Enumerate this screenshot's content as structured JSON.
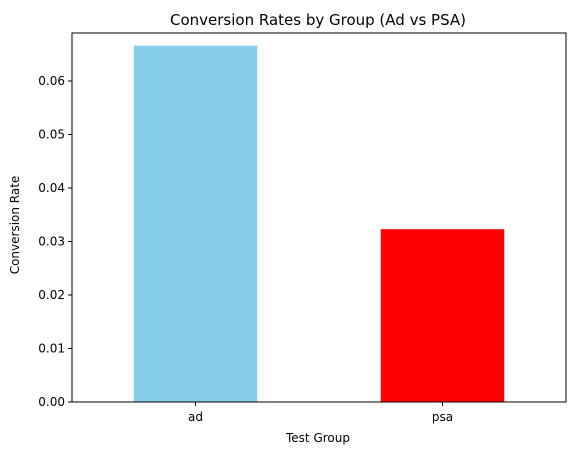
{
  "chart_data": {
    "type": "bar",
    "title": "Conversion Rates by Group (Ad vs PSA)",
    "xlabel": "Test Group",
    "ylabel": "Conversion Rate",
    "categories": [
      "ad",
      "psa"
    ],
    "values": [
      0.0666,
      0.0323
    ],
    "colors": [
      "#87ceeb",
      "#ff0000"
    ],
    "ylim": [
      0,
      0.06897
    ],
    "yticks": [
      0.0,
      0.01,
      0.02,
      0.03,
      0.04,
      0.05,
      0.06
    ],
    "ytick_labels": [
      "0.00",
      "0.01",
      "0.02",
      "0.03",
      "0.04",
      "0.05",
      "0.06"
    ],
    "grid": false,
    "legend": false
  }
}
